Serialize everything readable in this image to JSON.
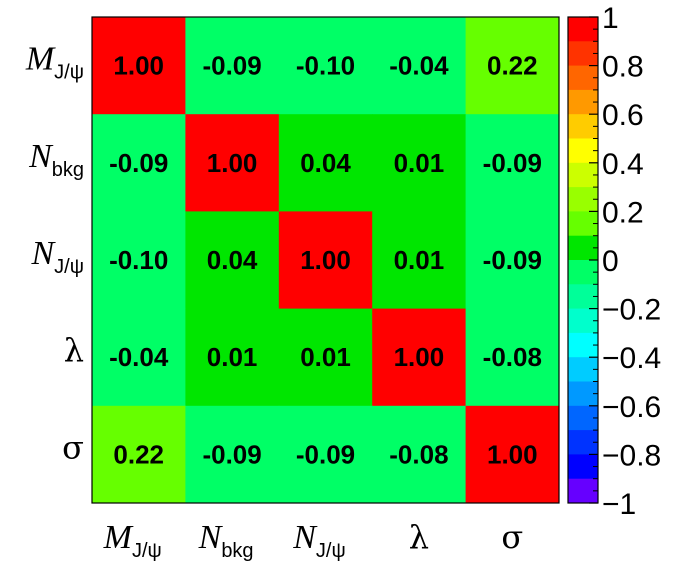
{
  "chart_data": {
    "type": "heatmap",
    "title": "",
    "variables": [
      {
        "main": "M",
        "sub": "J/ψ",
        "italic": true
      },
      {
        "main": "N",
        "sub": "bkg",
        "italic": true
      },
      {
        "main": "N",
        "sub": "J/ψ",
        "italic": true
      },
      {
        "main": "λ",
        "sub": "",
        "italic": false
      },
      {
        "main": "σ",
        "sub": "",
        "italic": false
      }
    ],
    "matrix": [
      [
        1.0,
        -0.09,
        -0.1,
        -0.04,
        0.22
      ],
      [
        -0.09,
        1.0,
        0.04,
        0.01,
        -0.09
      ],
      [
        -0.1,
        0.04,
        1.0,
        0.01,
        -0.09
      ],
      [
        -0.04,
        0.01,
        0.01,
        1.0,
        -0.08
      ],
      [
        0.22,
        -0.09,
        -0.09,
        -0.08,
        1.0
      ]
    ],
    "cell_labels": [
      [
        "1.00",
        "-0.09",
        "-0.10",
        "-0.04",
        "0.22"
      ],
      [
        "-0.09",
        "1.00",
        "0.04",
        "0.01",
        "-0.09"
      ],
      [
        "-0.10",
        "0.04",
        "1.00",
        "0.01",
        "-0.09"
      ],
      [
        "-0.04",
        "0.01",
        "0.01",
        "1.00",
        "-0.08"
      ],
      [
        "0.22",
        "-0.09",
        "-0.09",
        "-0.08",
        "1.00"
      ]
    ],
    "zlim": [
      -1,
      1
    ],
    "colorbar": {
      "ticks": [
        1,
        0.8,
        0.6,
        0.4,
        0.2,
        0,
        -0.2,
        -0.4,
        -0.6,
        -0.8,
        -1
      ],
      "tick_labels": [
        "1",
        "0.8",
        "0.6",
        "0.4",
        "0.2",
        "0",
        "−0.2",
        "−0.4",
        "−0.6",
        "−0.8",
        "−1"
      ],
      "colors_top_to_bottom": [
        "#ff0000",
        "#ff3300",
        "#ff6600",
        "#ff9900",
        "#ffcc00",
        "#ffff00",
        "#ccff00",
        "#99ff00",
        "#66ff00",
        "#00e600",
        "#00ff66",
        "#00ff99",
        "#00ffcc",
        "#00ffff",
        "#00ccff",
        "#0099ff",
        "#0066ff",
        "#0033ff",
        "#0000ff",
        "#6600ff"
      ]
    },
    "cell_colors": {
      "1.00": "#ff0000",
      "0.22": "#66ff00",
      "positive_small": "#00e600",
      "negative_small": "#00ff66"
    },
    "grid": false,
    "legend": "colorbar-right"
  }
}
